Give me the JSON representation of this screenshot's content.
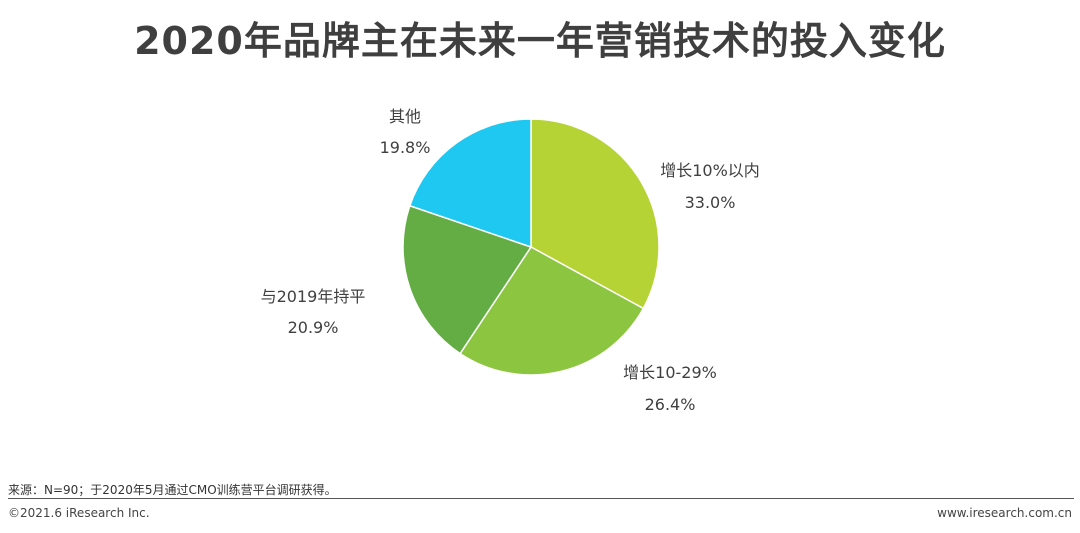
{
  "title": "2020年品牌主在未来一年营销技术的投入变化",
  "chart_data": {
    "type": "pie",
    "title": "2020年品牌主在未来一年营销技术的投入变化",
    "slices": [
      {
        "label": "增长10%以内",
        "value": 33.0,
        "value_label": "33.0%",
        "color": "#b5d334"
      },
      {
        "label": "增长10-29%",
        "value": 26.4,
        "value_label": "26.4%",
        "color": "#8cc540"
      },
      {
        "label": "与2019年持平",
        "value": 20.9,
        "value_label": "20.9%",
        "color": "#64ad44"
      },
      {
        "label": "其他",
        "value": 19.8,
        "value_label": "19.8%",
        "color": "#1fc8f0"
      }
    ],
    "start": "12 o'clock",
    "direction": "clockwise",
    "legend": "none"
  },
  "footer": {
    "source": "来源：N=90；于2020年5月通过CMO训练营平台调研获得。",
    "copyright": "©2021.6 iResearch Inc.",
    "website": "www.iresearch.com.cn"
  }
}
